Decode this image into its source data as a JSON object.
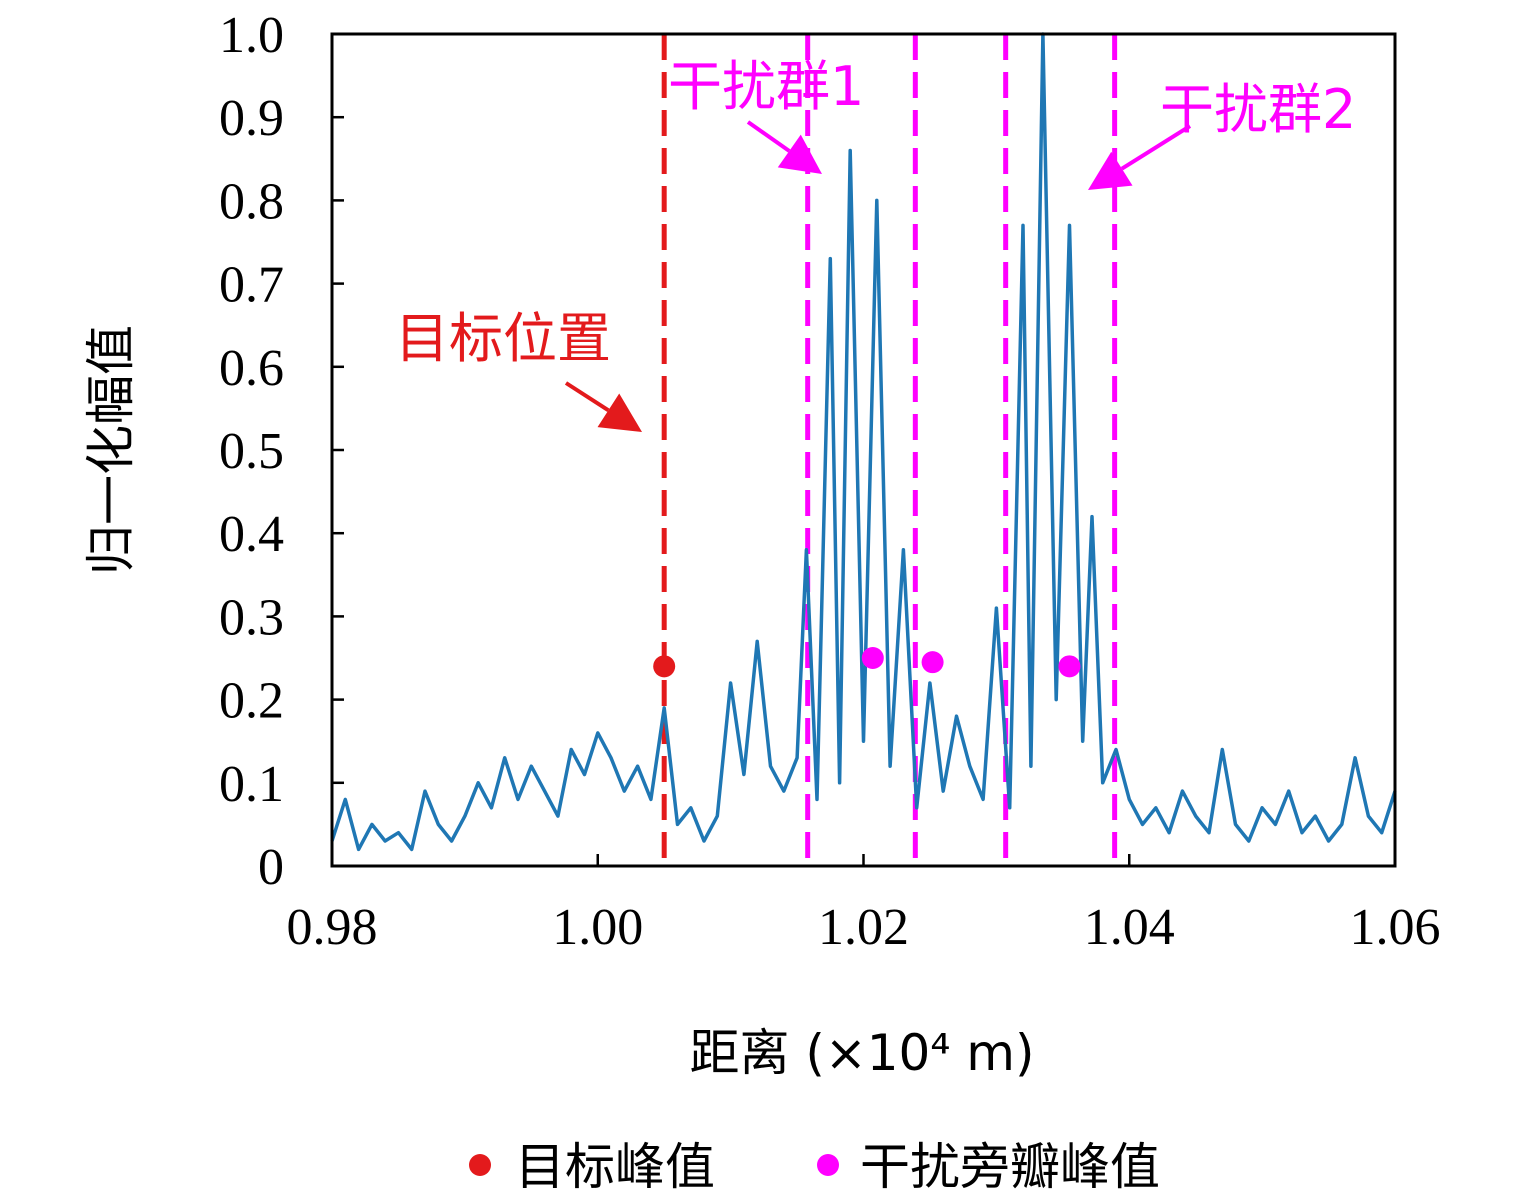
{
  "chart_data": {
    "type": "line",
    "xlabel": "距离 (×10⁴ m)",
    "ylabel": "归一化幅值",
    "xlim": [
      0.98,
      1.06
    ],
    "ylim": [
      0,
      1.0
    ],
    "x_ticks": [
      "0.98",
      "1.00",
      "1.02",
      "1.04",
      "1.06"
    ],
    "y_ticks": [
      "0",
      "0.1",
      "0.2",
      "0.3",
      "0.4",
      "0.5",
      "0.6",
      "0.7",
      "0.8",
      "0.9",
      "1.0"
    ],
    "grid": false,
    "line_color": "#1f77b4",
    "target_color": "#e31a1c",
    "interference_color": "#ff00ff",
    "series": [
      {
        "x": [
          0.98,
          0.981,
          0.982,
          0.983,
          0.984,
          0.985,
          0.986,
          0.987,
          0.988,
          0.989,
          0.99,
          0.991,
          0.992,
          0.993,
          0.994,
          0.995,
          0.996,
          0.997,
          0.998,
          0.999,
          1.0,
          1.001,
          1.002,
          1.003,
          1.004,
          1.005,
          1.006,
          1.007,
          1.008,
          1.009,
          1.01,
          1.011,
          1.012,
          1.013,
          1.014,
          1.015,
          1.0157,
          1.0165,
          1.0175,
          1.0182,
          1.019,
          1.02,
          1.021,
          1.022,
          1.023,
          1.024,
          1.025,
          1.026,
          1.027,
          1.028,
          1.029,
          1.03,
          1.031,
          1.032,
          1.0326,
          1.0335,
          1.0345,
          1.0355,
          1.0365,
          1.0372,
          1.038,
          1.039,
          1.04,
          1.041,
          1.042,
          1.043,
          1.044,
          1.045,
          1.046,
          1.047,
          1.048,
          1.049,
          1.05,
          1.051,
          1.052,
          1.053,
          1.054,
          1.055,
          1.056,
          1.057,
          1.058,
          1.059,
          1.06
        ],
        "y": [
          0.03,
          0.08,
          0.02,
          0.05,
          0.03,
          0.04,
          0.02,
          0.09,
          0.05,
          0.03,
          0.06,
          0.1,
          0.07,
          0.13,
          0.08,
          0.12,
          0.09,
          0.06,
          0.14,
          0.11,
          0.16,
          0.13,
          0.09,
          0.12,
          0.08,
          0.19,
          0.05,
          0.07,
          0.03,
          0.06,
          0.22,
          0.11,
          0.27,
          0.12,
          0.09,
          0.13,
          0.38,
          0.08,
          0.73,
          0.1,
          0.86,
          0.15,
          0.8,
          0.12,
          0.38,
          0.07,
          0.22,
          0.09,
          0.18,
          0.12,
          0.08,
          0.31,
          0.07,
          0.77,
          0.12,
          1.0,
          0.2,
          0.77,
          0.15,
          0.42,
          0.1,
          0.14,
          0.08,
          0.05,
          0.07,
          0.04,
          0.09,
          0.06,
          0.04,
          0.14,
          0.05,
          0.03,
          0.07,
          0.05,
          0.09,
          0.04,
          0.06,
          0.03,
          0.05,
          0.13,
          0.06,
          0.04,
          0.09
        ]
      }
    ],
    "target_line_x": 1.005,
    "interference_lines_x": [
      1.0158,
      1.0239,
      1.0307,
      1.0389
    ],
    "target_peak": {
      "x": 1.005,
      "y": 0.24
    },
    "interference_peaks": [
      {
        "x": 1.0207,
        "y": 0.25
      },
      {
        "x": 1.0252,
        "y": 0.245
      },
      {
        "x": 1.0355,
        "y": 0.24
      }
    ],
    "annotations": {
      "target": "目标位置",
      "group1": "干扰群1",
      "group2": "干扰群2"
    },
    "legend": {
      "placement": "bottom",
      "entries": [
        "目标峰值",
        "干扰旁瓣峰值"
      ]
    }
  }
}
